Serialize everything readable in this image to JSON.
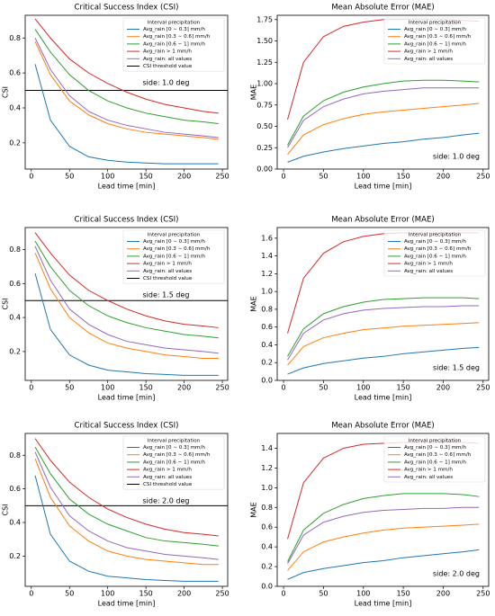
{
  "chart_data": [
    {
      "type": "line",
      "title": "Critical Success Index (CSI)",
      "x_label": "Lead time [min]",
      "y_label": "CSI",
      "annotation": "side: 1.0 deg",
      "legend_title": "Interval precipitation",
      "legend": "upper right",
      "x": [
        5,
        25,
        50,
        75,
        100,
        125,
        150,
        175,
        200,
        225,
        245
      ],
      "xlim": [
        -8,
        257
      ],
      "xticks": [
        0,
        50,
        100,
        150,
        200,
        250
      ],
      "ylim": [
        0.05,
        0.93
      ],
      "yticks": [
        0.2,
        0.4,
        0.6,
        0.8
      ],
      "series": [
        {
          "name": "Avg_rain [0 ∼ 0.3] mm/h",
          "color": "#1f77b4",
          "values": [
            0.65,
            0.33,
            0.18,
            0.12,
            0.1,
            0.09,
            0.085,
            0.08,
            0.08,
            0.08,
            0.08
          ]
        },
        {
          "name": "Avg_rain [0.3 ∼ 0.6] mm/h",
          "color": "#ff7f0e",
          "values": [
            0.78,
            0.59,
            0.44,
            0.36,
            0.31,
            0.28,
            0.26,
            0.25,
            0.24,
            0.23,
            0.22
          ]
        },
        {
          "name": "Avg_rain [0.6 ∼ 1] mm/h",
          "color": "#2ca02c",
          "values": [
            0.85,
            0.72,
            0.59,
            0.5,
            0.44,
            0.4,
            0.37,
            0.35,
            0.33,
            0.32,
            0.31
          ]
        },
        {
          "name": "Avg_rain > 1 mm/h",
          "color": "#d62728",
          "values": [
            0.91,
            0.8,
            0.68,
            0.6,
            0.54,
            0.49,
            0.45,
            0.42,
            0.4,
            0.38,
            0.37
          ]
        },
        {
          "name": "Avg_rain: all values",
          "color": "#9467bd",
          "values": [
            0.8,
            0.62,
            0.47,
            0.38,
            0.33,
            0.3,
            0.28,
            0.26,
            0.25,
            0.24,
            0.23
          ]
        }
      ],
      "threshold": {
        "name": "CSI threshold value",
        "value": 0.5,
        "color": "#000000"
      }
    },
    {
      "type": "line",
      "title": "Mean Absolute Error (MAE)",
      "x_label": "Lead time [min]",
      "y_label": "MAE",
      "annotation": "side: 1.0 deg",
      "legend_title": "Interval precipitation",
      "legend": "upper right",
      "x": [
        5,
        25,
        50,
        75,
        100,
        125,
        150,
        175,
        200,
        225,
        245
      ],
      "xlim": [
        -8,
        257
      ],
      "xticks": [
        0,
        50,
        100,
        150,
        200,
        250
      ],
      "ylim": [
        0,
        1.8
      ],
      "yticks": [
        {
          "value": 0,
          "label": "0.00"
        },
        0.25,
        {
          "value": 0.5,
          "label": "0.50"
        },
        0.75,
        {
          "value": 1,
          "label": "1.00"
        },
        1.25,
        {
          "value": 1.5,
          "label": "1.50"
        },
        1.75
      ],
      "series": [
        {
          "name": "Avg_rain [0 ∼ 0.3] mm/h",
          "color": "#1f77b4",
          "values": [
            0.08,
            0.15,
            0.2,
            0.24,
            0.27,
            0.3,
            0.32,
            0.35,
            0.37,
            0.4,
            0.42
          ]
        },
        {
          "name": "Avg_rain [0.3 ∼ 0.6] mm/h",
          "color": "#ff7f0e",
          "values": [
            0.17,
            0.4,
            0.52,
            0.59,
            0.64,
            0.67,
            0.69,
            0.71,
            0.73,
            0.75,
            0.77
          ]
        },
        {
          "name": "Avg_rain [0.6 ∼ 1] mm/h",
          "color": "#2ca02c",
          "values": [
            0.28,
            0.62,
            0.8,
            0.9,
            0.96,
            1.0,
            1.03,
            1.04,
            1.04,
            1.03,
            1.02
          ]
        },
        {
          "name": "Avg_rain > 1 mm/h",
          "color": "#d62728",
          "values": [
            0.58,
            1.25,
            1.55,
            1.67,
            1.72,
            1.75,
            1.75,
            1.75,
            1.75,
            1.74,
            1.73
          ]
        },
        {
          "name": "Avg_rain: all values",
          "color": "#9467bd",
          "values": [
            0.25,
            0.57,
            0.73,
            0.82,
            0.88,
            0.91,
            0.93,
            0.95,
            0.95,
            0.95,
            0.95
          ]
        }
      ]
    },
    {
      "type": "line",
      "title": "Critical Success Index (CSI)",
      "x_label": "Lead time [min]",
      "y_label": "CSI",
      "annotation": "side: 1.5 deg",
      "legend_title": "Interval precipitation",
      "legend": "upper right",
      "x": [
        5,
        25,
        50,
        75,
        100,
        125,
        150,
        175,
        200,
        225,
        245
      ],
      "xlim": [
        -8,
        257
      ],
      "xticks": [
        0,
        50,
        100,
        150,
        200,
        250
      ],
      "ylim": [
        0.03,
        0.93
      ],
      "yticks": [
        0.2,
        0.4,
        0.6,
        0.8
      ],
      "series": [
        {
          "name": "Avg_rain [0 ∼ 0.3] mm/h",
          "color": "#1f77b4",
          "values": [
            0.66,
            0.33,
            0.18,
            0.12,
            0.09,
            0.08,
            0.07,
            0.065,
            0.06,
            0.06,
            0.06
          ]
        },
        {
          "name": "Avg_rain [0.3 ∼ 0.6] mm/h",
          "color": "#ff7f0e",
          "values": [
            0.78,
            0.57,
            0.4,
            0.31,
            0.25,
            0.22,
            0.2,
            0.18,
            0.17,
            0.16,
            0.16
          ]
        },
        {
          "name": "Avg_rain [0.6 ∼ 1] mm/h",
          "color": "#2ca02c",
          "values": [
            0.85,
            0.7,
            0.56,
            0.47,
            0.41,
            0.37,
            0.34,
            0.32,
            0.3,
            0.29,
            0.28
          ]
        },
        {
          "name": "Avg_rain > 1 mm/h",
          "color": "#d62728",
          "values": [
            0.9,
            0.78,
            0.65,
            0.56,
            0.5,
            0.45,
            0.41,
            0.38,
            0.36,
            0.35,
            0.34
          ]
        },
        {
          "name": "Avg_rain: all values",
          "color": "#9467bd",
          "values": [
            0.82,
            0.62,
            0.45,
            0.36,
            0.3,
            0.26,
            0.24,
            0.22,
            0.21,
            0.2,
            0.19
          ]
        }
      ],
      "threshold": {
        "name": "CSI threshold value",
        "value": 0.5,
        "color": "#000000"
      }
    },
    {
      "type": "line",
      "title": "Mean Absolute Error (MAE)",
      "x_label": "Lead time [min]",
      "y_label": "MAE",
      "annotation": "side: 1.5 deg",
      "legend_title": "Interval precipitation",
      "legend": "upper right",
      "x": [
        5,
        25,
        50,
        75,
        100,
        125,
        150,
        175,
        200,
        225,
        245
      ],
      "xlim": [
        -8,
        257
      ],
      "xticks": [
        0,
        50,
        100,
        150,
        200,
        250
      ],
      "ylim": [
        0,
        1.72
      ],
      "yticks": [
        {
          "value": 0,
          "label": "0.0"
        },
        0.2,
        0.4,
        0.6,
        0.8,
        {
          "value": 1,
          "label": "1.0"
        },
        1.2,
        1.4,
        1.6
      ],
      "series": [
        {
          "name": "Avg_rain [0 ∼ 0.3] mm/h",
          "color": "#1f77b4",
          "values": [
            0.07,
            0.14,
            0.19,
            0.22,
            0.25,
            0.27,
            0.3,
            0.32,
            0.34,
            0.36,
            0.37
          ]
        },
        {
          "name": "Avg_rain [0.3 ∼ 0.6] mm/h",
          "color": "#ff7f0e",
          "values": [
            0.17,
            0.38,
            0.48,
            0.53,
            0.57,
            0.59,
            0.61,
            0.62,
            0.63,
            0.64,
            0.65
          ]
        },
        {
          "name": "Avg_rain [0.6 ∼ 1] mm/h",
          "color": "#2ca02c",
          "values": [
            0.27,
            0.58,
            0.75,
            0.83,
            0.88,
            0.91,
            0.92,
            0.93,
            0.93,
            0.93,
            0.92
          ]
        },
        {
          "name": "Avg_rain > 1 mm/h",
          "color": "#d62728",
          "values": [
            0.53,
            1.15,
            1.43,
            1.56,
            1.62,
            1.65,
            1.66,
            1.66,
            1.66,
            1.66,
            1.66
          ]
        },
        {
          "name": "Avg_rain: all values",
          "color": "#9467bd",
          "values": [
            0.23,
            0.53,
            0.68,
            0.75,
            0.79,
            0.81,
            0.82,
            0.83,
            0.83,
            0.84,
            0.84
          ]
        }
      ]
    },
    {
      "type": "line",
      "title": "Critical Success Index (CSI)",
      "x_label": "Lead time [min]",
      "y_label": "CSI",
      "annotation": "side: 2.0 deg",
      "legend_title": "Interval precipitation",
      "legend": "upper right",
      "x": [
        5,
        25,
        50,
        75,
        100,
        125,
        150,
        175,
        200,
        225,
        245
      ],
      "xlim": [
        -8,
        257
      ],
      "xticks": [
        0,
        50,
        100,
        150,
        200,
        250
      ],
      "ylim": [
        0.02,
        0.93
      ],
      "yticks": [
        0.2,
        0.4,
        0.6,
        0.8
      ],
      "series": [
        {
          "name": "Avg_rain [0 ∼ 0.3] mm/h",
          "color": "#1f77b4",
          "values": [
            0.68,
            0.33,
            0.17,
            0.11,
            0.08,
            0.07,
            0.06,
            0.055,
            0.05,
            0.05,
            0.05
          ]
        },
        {
          "name": "Avg_rain [0.3 ∼ 0.6] mm/h",
          "color": "#ff7f0e",
          "values": [
            0.78,
            0.55,
            0.38,
            0.29,
            0.23,
            0.2,
            0.18,
            0.17,
            0.16,
            0.15,
            0.15
          ]
        },
        {
          "name": "Avg_rain [0.6 ∼ 1] mm/h",
          "color": "#2ca02c",
          "values": [
            0.85,
            0.69,
            0.54,
            0.45,
            0.39,
            0.35,
            0.31,
            0.29,
            0.28,
            0.27,
            0.26
          ]
        },
        {
          "name": "Avg_rain > 1 mm/h",
          "color": "#d62728",
          "values": [
            0.9,
            0.77,
            0.64,
            0.55,
            0.48,
            0.43,
            0.39,
            0.36,
            0.34,
            0.33,
            0.32
          ]
        },
        {
          "name": "Avg_rain: all values",
          "color": "#9467bd",
          "values": [
            0.82,
            0.61,
            0.44,
            0.35,
            0.29,
            0.25,
            0.23,
            0.21,
            0.2,
            0.19,
            0.18
          ]
        }
      ],
      "threshold": {
        "name": "CSI threshold value",
        "value": 0.5,
        "color": "#000000"
      }
    },
    {
      "type": "line",
      "title": "Mean Absolute Error (MAE)",
      "x_label": "Lead time [min]",
      "y_label": "MAE",
      "annotation": "side: 2.0 deg",
      "legend_title": "Interval precipitation",
      "legend": "upper right",
      "x": [
        5,
        25,
        50,
        75,
        100,
        125,
        150,
        175,
        200,
        225,
        245
      ],
      "xlim": [
        -8,
        257
      ],
      "xticks": [
        0,
        50,
        100,
        150,
        200,
        250
      ],
      "ylim": [
        0,
        1.55
      ],
      "yticks": [
        {
          "value": 0,
          "label": "0.0"
        },
        0.2,
        0.4,
        0.6,
        0.8,
        {
          "value": 1,
          "label": "1.0"
        },
        1.2,
        1.4
      ],
      "series": [
        {
          "name": "Avg_rain [0 ∼ 0.3] mm/h",
          "color": "#1f77b4",
          "values": [
            0.07,
            0.14,
            0.18,
            0.21,
            0.24,
            0.26,
            0.29,
            0.31,
            0.33,
            0.35,
            0.37
          ]
        },
        {
          "name": "Avg_rain [0.3 ∼ 0.6] mm/h",
          "color": "#ff7f0e",
          "values": [
            0.16,
            0.35,
            0.45,
            0.5,
            0.54,
            0.57,
            0.59,
            0.6,
            0.61,
            0.62,
            0.63
          ]
        },
        {
          "name": "Avg_rain [0.6 ∼ 1] mm/h",
          "color": "#2ca02c",
          "values": [
            0.25,
            0.57,
            0.74,
            0.83,
            0.89,
            0.92,
            0.94,
            0.94,
            0.94,
            0.93,
            0.91
          ]
        },
        {
          "name": "Avg_rain > 1 mm/h",
          "color": "#d62728",
          "values": [
            0.48,
            1.05,
            1.3,
            1.4,
            1.44,
            1.45,
            1.46,
            1.46,
            1.46,
            1.46,
            1.45
          ]
        },
        {
          "name": "Avg_rain: all values",
          "color": "#9467bd",
          "values": [
            0.23,
            0.52,
            0.65,
            0.71,
            0.75,
            0.77,
            0.78,
            0.79,
            0.79,
            0.8,
            0.8
          ]
        }
      ]
    }
  ]
}
